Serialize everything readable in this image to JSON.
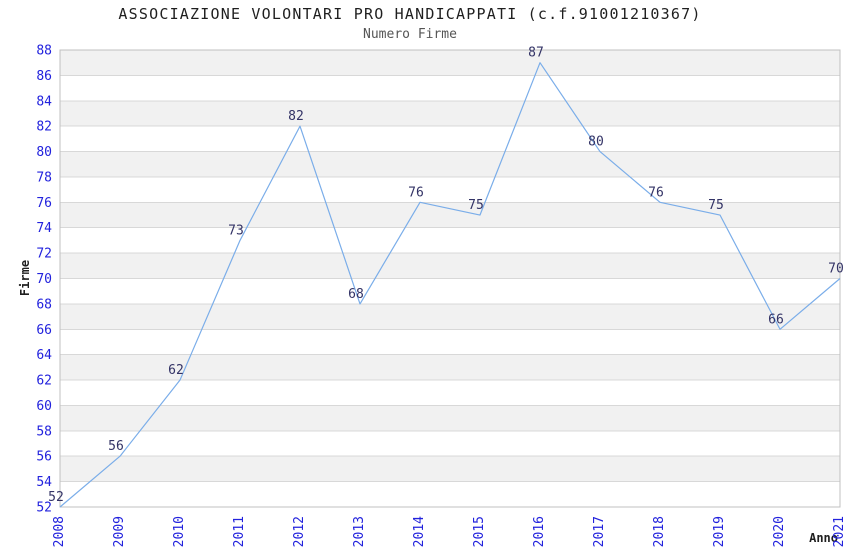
{
  "chart_data": {
    "type": "line",
    "title": "ASSOCIAZIONE VOLONTARI PRO HANDICAPPATI (c.f.91001210367)",
    "subtitle": "Numero Firme",
    "xlabel": "Anno",
    "ylabel": "Firme",
    "x": [
      "2008",
      "2009",
      "2010",
      "2011",
      "2012",
      "2013",
      "2014",
      "2015",
      "2016",
      "2017",
      "2018",
      "2019",
      "2020",
      "2021"
    ],
    "values": [
      52,
      56,
      62,
      73,
      82,
      68,
      76,
      75,
      87,
      80,
      76,
      75,
      66,
      70
    ],
    "ylim": [
      52,
      88
    ],
    "ytick_step": 2,
    "grid": true,
    "legend_position": "none",
    "point_labels_visible": true,
    "band_colors": [
      "#ffffff",
      "#f1f1f1"
    ],
    "colors": {
      "line": "#7aade9",
      "tick_label": "#2222dd",
      "point_label": "#333366",
      "title": "#1f1f1f",
      "subtitle": "#555555",
      "axis_title": "#1f1f1f",
      "gridline": "#d8d8d8",
      "plot_border": "#c0c0c0",
      "background": "#ffffff"
    }
  }
}
